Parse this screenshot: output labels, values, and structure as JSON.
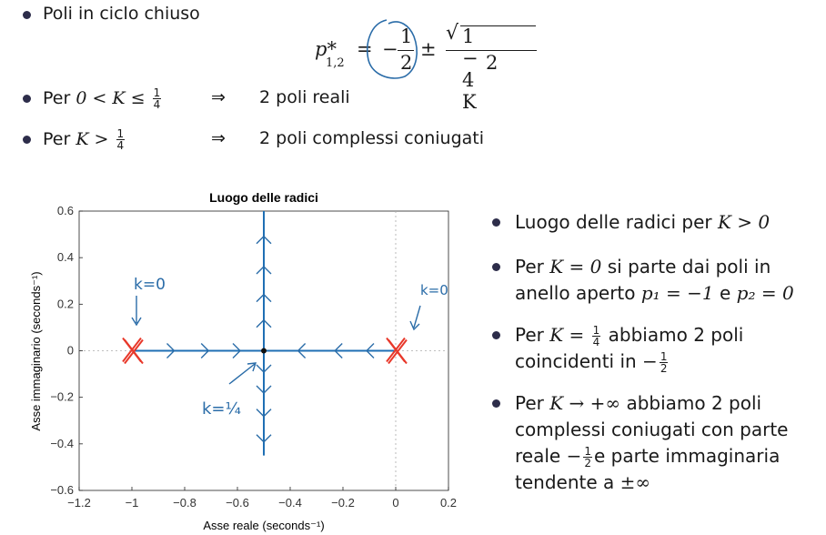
{
  "top": {
    "b1": "Poli in ciclo chiuso",
    "formula": {
      "lhs": "p*",
      "lhs_sub": "1,2",
      "eq": "=",
      "minus": "−",
      "half_num": "1",
      "half_den": "2",
      "pm": "±",
      "sqrt_arg": "1 − 4 K",
      "den": "2"
    },
    "b2_prefix": "Per",
    "b2_math": "0 < K ≤",
    "b2_num": "1",
    "b2_den": "4",
    "b2_arrow": "⇒",
    "b2_result": "2 poli reali",
    "b3_prefix": "Per",
    "b3_math": "K >",
    "b3_num": "1",
    "b3_den": "4",
    "b3_arrow": "⇒",
    "b3_result": "2 poli complessi coniugati"
  },
  "right": {
    "i1_text": "Luogo delle radici per",
    "i1_math": "K > 0",
    "i2_pre": "Per",
    "i2_math": "K = 0",
    "i2_post": "si parte dai poli in",
    "i2_line2_pre": "anello aperto",
    "i2_p1": "p₁ = −1",
    "i2_and": "e",
    "i2_p2": "p₂ = 0",
    "i3_pre": "Per",
    "i3_math": "K =",
    "i3_num": "1",
    "i3_den": "4",
    "i3_post": "abbiamo 2 poli",
    "i3_line2": "coincidenti in",
    "i3_line2_math": "−",
    "i3_line2_num": "1",
    "i3_line2_den": "2",
    "i4_pre": "Per",
    "i4_math": "K → +∞",
    "i4_post": "abbiamo 2 poli",
    "i4_line2": "complessi coniugati con parte",
    "i4_line3_pre": "reale",
    "i4_line3_math": "−",
    "i4_line3_num": "1",
    "i4_line3_den": "2",
    "i4_line3_post": "e parte immaginaria",
    "i4_line4": "tendente a",
    "i4_line4_math": "±∞"
  },
  "annotations": {
    "k0_left": "k=0",
    "k0_right": "k=0",
    "k14": "k=¼"
  },
  "colors": {
    "locus": "#1f6fb4",
    "pole_x": "#e8382a",
    "ink": "#2a6ca8"
  },
  "chart_data": {
    "type": "line",
    "title": "Luogo delle radici",
    "xlabel": "Asse reale (seconds⁻¹)",
    "ylabel": "Asse immaginario (seconds⁻¹)",
    "xlim": [
      -1.2,
      0.2
    ],
    "ylim": [
      -0.6,
      0.6
    ],
    "xticks": [
      "-1.2",
      "-1",
      "-0.8",
      "-0.6",
      "-0.4",
      "-0.2",
      "0",
      "0.2"
    ],
    "yticks": [
      "-0.6",
      "-0.4",
      "-0.2",
      "0",
      "0.2",
      "0.4",
      "0.6"
    ],
    "poles": [
      {
        "x": -1,
        "y": 0
      },
      {
        "x": 0,
        "y": 0
      }
    ],
    "branches": [
      {
        "x": [
          -1,
          -0.5
        ],
        "y": [
          0,
          0
        ]
      },
      {
        "x": [
          0,
          -0.5
        ],
        "y": [
          0,
          0
        ]
      },
      {
        "x": [
          -0.5,
          -0.5
        ],
        "y": [
          0,
          0.6
        ]
      },
      {
        "x": [
          -0.5,
          -0.5
        ],
        "y": [
          0,
          -0.45
        ]
      }
    ],
    "breakaway": {
      "x": -0.5,
      "y": 0
    }
  }
}
